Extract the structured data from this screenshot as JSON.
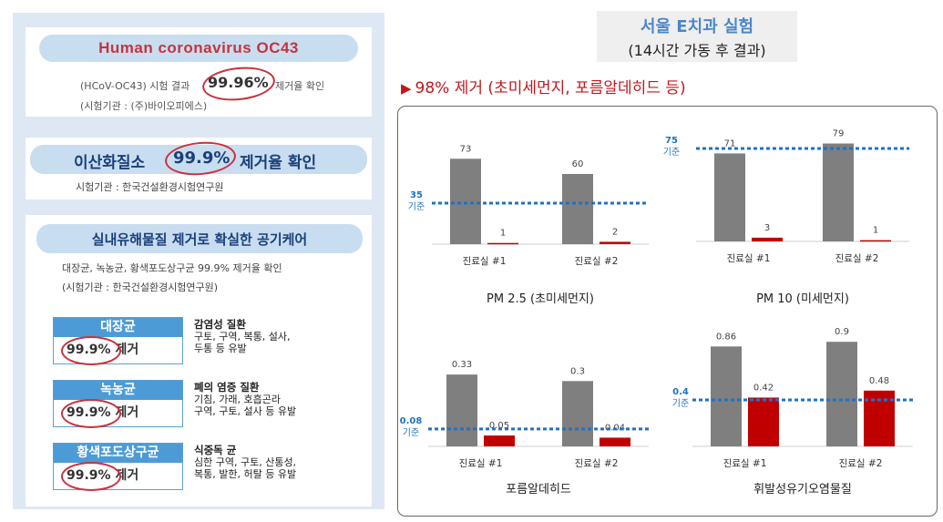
{
  "left": {
    "card1": {
      "title": "Human coronavirus OC43",
      "line1_prefix": "(HCoV-OC43) 시험 결과",
      "line1_value": "99.96%",
      "line1_suffix": "제거율 확인",
      "line2": "(시험기관 : (주)바이오피에스)"
    },
    "card2": {
      "title_prefix": "이산화질소",
      "title_value": "99.9%",
      "title_suffix": "제거율 확인",
      "line": "시험기관 : 한국건설환경시험연구원"
    },
    "card3": {
      "title": "실내유해물질 제거로 확실한 공기케어",
      "line1": "대장균, 녹농균, 황색포도상구균 99.9% 제거율 확인",
      "line2": "(시험기관 : 한국건설환경시험연구원)",
      "germs": [
        {
          "name": "대장균",
          "value": "99.9%",
          "value_suffix": "제거",
          "desc_title": "감염성 질환",
          "desc_lines": [
            "구토, 구역, 복통, 설사,",
            "두통 등 유발"
          ]
        },
        {
          "name": "녹농균",
          "value": "99.9%",
          "value_suffix": "제거",
          "desc_title": "폐의 염증 질환",
          "desc_lines": [
            "기침, 가래, 호흡곤라",
            "구역, 구토, 설사 등 유발"
          ]
        },
        {
          "name": "황색포도상구균",
          "value": "99.9%",
          "value_suffix": "제거",
          "desc_title": "식중독 균",
          "desc_lines": [
            "심한 구역, 구토, 산통성,",
            "복통, 발한, 허탈 등 유발"
          ]
        }
      ]
    }
  },
  "right": {
    "title": "서울 E치과 실험",
    "subtitle": "(14시간 가동 후 결과)",
    "headline": "98% 제거 (초미세먼지, 포름알데히드 등)",
    "headline_icon": "play-triangle-icon"
  },
  "colors": {
    "before_bar": "#7f7f7f",
    "after_bar": "#c00000",
    "standard_line": "#1f72c4",
    "accent_red": "#c4161c",
    "panel_bg": "#dde8f4",
    "pill_bg": "#c8ddf0",
    "title_blue": "#4d86c8"
  },
  "chart_data": [
    {
      "type": "bar",
      "title": "PM 2.5 (초미세먼지)",
      "categories": [
        "진료실 #1",
        "진료실 #2"
      ],
      "series": [
        {
          "values": [
            73,
            60
          ]
        },
        {
          "values": [
            1,
            2
          ]
        }
      ],
      "reference_line": {
        "value": 35,
        "label": [
          "35",
          "기준"
        ]
      },
      "ylim": [
        0,
        88
      ]
    },
    {
      "type": "bar",
      "title": "PM 10 (미세먼지)",
      "categories": [
        "진료실 #1",
        "진료실 #2"
      ],
      "series": [
        {
          "values": [
            71,
            79
          ]
        },
        {
          "values": [
            3,
            1
          ]
        }
      ],
      "reference_line": {
        "value": 75,
        "label": [
          "75",
          "기준"
        ]
      },
      "ylim": [
        0,
        86
      ]
    },
    {
      "type": "bar",
      "title": "포름알데히드",
      "categories": [
        "진료실 #1",
        "진료실 #2"
      ],
      "series": [
        {
          "values": [
            0.33,
            0.3
          ]
        },
        {
          "values": [
            0.05,
            0.04
          ]
        }
      ],
      "reference_line": {
        "value": 0.08,
        "label": [
          "0.08",
          "기준"
        ]
      },
      "ylim": [
        0,
        0.41
      ]
    },
    {
      "type": "bar",
      "title": "휘발성유기오염물질",
      "categories": [
        "진료실 #1",
        "진료실 #2"
      ],
      "series": [
        {
          "values": [
            0.86,
            0.9
          ]
        },
        {
          "values": [
            0.42,
            0.48
          ]
        }
      ],
      "reference_line": {
        "value": 0.4,
        "label": [
          "0.4",
          "기준"
        ]
      },
      "ylim": [
        0,
        0.98
      ]
    }
  ]
}
